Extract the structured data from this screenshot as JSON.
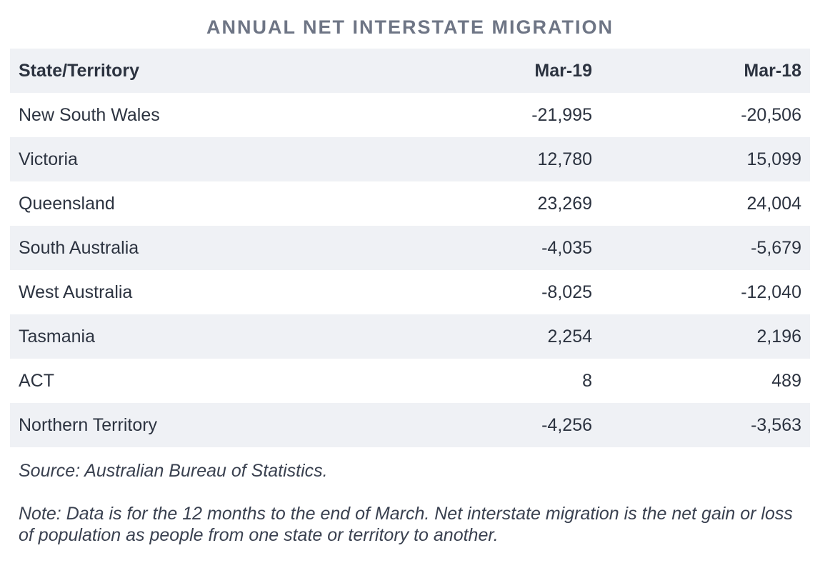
{
  "title": "ANNUAL NET INTERSTATE MIGRATION",
  "table": {
    "headers": [
      "State/Territory",
      "Mar-19",
      "Mar-18"
    ],
    "rows": [
      [
        "New South Wales",
        "-21,995",
        "-20,506"
      ],
      [
        "Victoria",
        "12,780",
        "15,099"
      ],
      [
        "Queensland",
        "23,269",
        "24,004"
      ],
      [
        "South Australia",
        "-4,035",
        "-5,679"
      ],
      [
        "West Australia",
        "-8,025",
        "-12,040"
      ],
      [
        "Tasmania",
        "2,254",
        "2,196"
      ],
      [
        "ACT",
        "8",
        "489"
      ],
      [
        "Northern Territory",
        "-4,256",
        "-3,563"
      ]
    ]
  },
  "source": "Source: Australian Bureau of Statistics.",
  "note": "Note: Data is for the 12 months to the end of March. Net interstate migration is the net gain or loss of population as people from one state or territory to another.",
  "colors": {
    "title": "#6e7585",
    "shaded_row": "#eff1f5",
    "text": "#2c3340"
  },
  "chart_data": {
    "type": "table",
    "title": "ANNUAL NET INTERSTATE MIGRATION",
    "columns": [
      "State/Territory",
      "Mar-19",
      "Mar-18"
    ],
    "categories": [
      "New South Wales",
      "Victoria",
      "Queensland",
      "South Australia",
      "West Australia",
      "Tasmania",
      "ACT",
      "Northern Territory"
    ],
    "series": [
      {
        "name": "Mar-19",
        "values": [
          -21995,
          12780,
          23269,
          -4035,
          -8025,
          2254,
          8,
          -4256
        ]
      },
      {
        "name": "Mar-18",
        "values": [
          -20506,
          15099,
          24004,
          -5679,
          -12040,
          2196,
          489,
          -3563
        ]
      }
    ]
  }
}
